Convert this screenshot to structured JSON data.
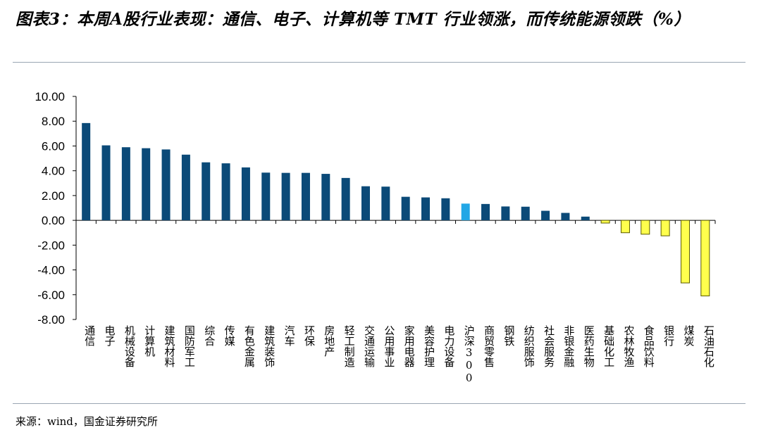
{
  "header": {
    "title": "图表3：本周A股行业表现：通信、电子、计算机等 TMT 行业领涨，而传统能源领跌（%）"
  },
  "footer": {
    "source": "来源：wind，国金证券研究所"
  },
  "colors": {
    "positive": "#0b4a78",
    "benchmark": "#22a7e6",
    "negative": "#ffff4d",
    "negative_outline": "#5a5a00",
    "axis": "#000000"
  },
  "chart_data": {
    "type": "bar",
    "title": "",
    "xlabel": "",
    "ylabel": "",
    "ylim": [
      -8,
      10
    ],
    "yticks": [
      "10.00",
      "8.00",
      "6.00",
      "4.00",
      "2.00",
      "0.00",
      "-2.00",
      "-4.00",
      "-6.00",
      "-8.00"
    ],
    "grid": false,
    "legend": "none",
    "categories": [
      "通信",
      "电子",
      "机械设备",
      "计算机",
      "建筑材料",
      "国防军工",
      "综合",
      "传媒",
      "有色金属",
      "建筑装饰",
      "汽车",
      "环保",
      "房地产",
      "轻工制造",
      "交通运输",
      "公用事业",
      "家用电器",
      "美容护理",
      "电力设备",
      "沪深300",
      "商贸零售",
      "钢铁",
      "纺织服饰",
      "社会服务",
      "非银金融",
      "医药生物",
      "基础化工",
      "农林牧渔",
      "食品饮料",
      "银行",
      "煤炭",
      "石油石化"
    ],
    "values": [
      7.85,
      6.05,
      5.9,
      5.82,
      5.72,
      5.3,
      4.68,
      4.6,
      4.27,
      3.85,
      3.83,
      3.83,
      3.75,
      3.42,
      2.75,
      2.72,
      1.9,
      1.85,
      1.78,
      1.35,
      1.32,
      1.12,
      1.1,
      0.77,
      0.6,
      0.3,
      -0.22,
      -1.0,
      -1.12,
      -1.25,
      -5.05,
      -6.1
    ],
    "highlight": "沪深300"
  }
}
